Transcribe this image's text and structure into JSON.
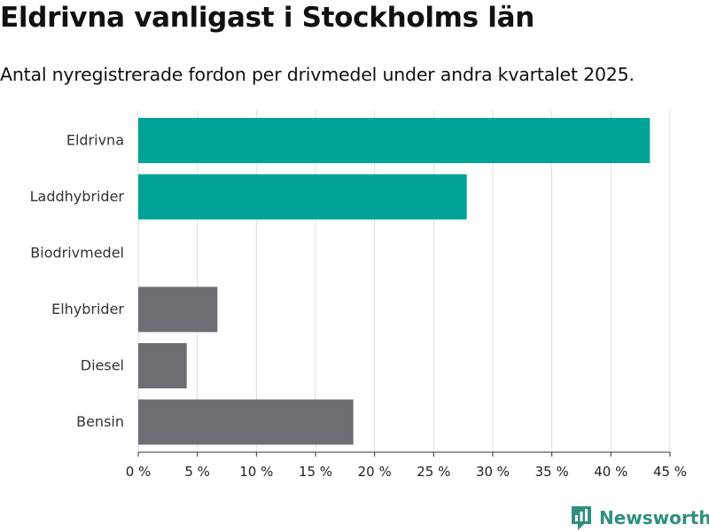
{
  "title": "Eldrivna vanligast i Stockholms län",
  "subtitle": "Antal nyregistrerade fordon per drivmedel under andra kvartalet 2025.",
  "brand": "Newsworthy",
  "colors": {
    "highlight": "#00a396",
    "other": "#6e6d73",
    "grid": "#dddddd",
    "brand": "#2f8f7c"
  },
  "chart_data": {
    "type": "bar",
    "orientation": "horizontal",
    "categories": [
      "Eldrivna",
      "Laddhybrider",
      "Biodrivmedel",
      "Elhybrider",
      "Diesel",
      "Bensin"
    ],
    "values": [
      43.3,
      27.8,
      0,
      6.7,
      4.1,
      18.2
    ],
    "highlighted": [
      true,
      true,
      false,
      false,
      false,
      false
    ],
    "xlim": [
      0,
      45
    ],
    "xticks": [
      0,
      5,
      10,
      15,
      20,
      25,
      30,
      35,
      40,
      45
    ],
    "xtick_suffix": " %",
    "grid": true
  }
}
